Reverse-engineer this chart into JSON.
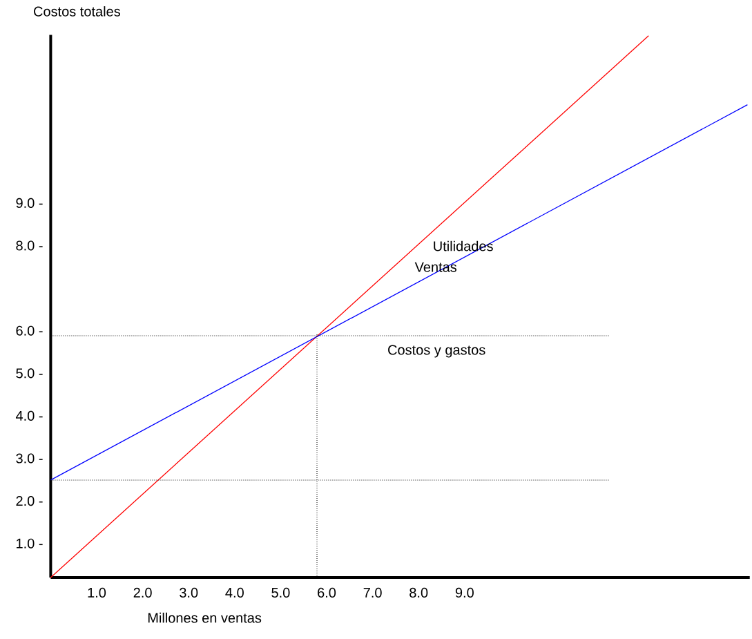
{
  "chart_data": {
    "type": "line",
    "xlabel": "Millones en ventas",
    "ylabel": "Costos totales",
    "marker": "none",
    "line_style": "solid",
    "xlim": [
      0,
      15.2
    ],
    "ylim": [
      0.2,
      12.95
    ],
    "xticks": [
      {
        "value": 1,
        "label": "1.0"
      },
      {
        "value": 2,
        "label": "2.0"
      },
      {
        "value": 3,
        "label": "3.0"
      },
      {
        "value": 4,
        "label": "4.0"
      },
      {
        "value": 5,
        "label": "5.0"
      },
      {
        "value": 6,
        "label": "6.0"
      },
      {
        "value": 7,
        "label": "7.0"
      },
      {
        "value": 8,
        "label": "8.0"
      },
      {
        "value": 9,
        "label": "9.0"
      }
    ],
    "yticks": [
      {
        "value": 1,
        "label": "1.0 -"
      },
      {
        "value": 2,
        "label": "2.0 -"
      },
      {
        "value": 3,
        "label": "3.0 -"
      },
      {
        "value": 4,
        "label": "4.0 -"
      },
      {
        "value": 5,
        "label": "5.0 -"
      },
      {
        "value": 6,
        "label": "6.0 -"
      },
      {
        "value": 8,
        "label": "8.0 -"
      },
      {
        "value": 9,
        "label": "9.0 -"
      }
    ],
    "series": [
      {
        "color": "#ff0000",
        "x": [
          0,
          13.0
        ],
        "values": [
          0.2,
          12.93
        ]
      },
      {
        "color": "#0000ff",
        "x": [
          0,
          15.15
        ],
        "values": [
          2.49,
          11.31
        ]
      }
    ],
    "ref_lines": [
      {
        "axis": "y",
        "value": 5.88,
        "line_style": "dotted",
        "color": "#000000"
      },
      {
        "axis": "y",
        "value": 2.49,
        "line_style": "dotted",
        "color": "#000000"
      },
      {
        "axis": "x",
        "value": 5.79,
        "line_style": "dotted",
        "color": "#000000"
      }
    ],
    "annotations": [
      "Utilidades",
      "Ventas",
      "Costos y gastos"
    ]
  }
}
